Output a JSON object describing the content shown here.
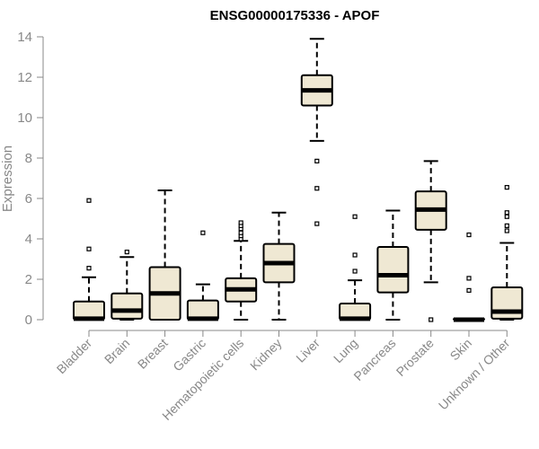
{
  "chart_data": {
    "type": "boxplot",
    "title": "ENSG00000175336 - APOF",
    "xlabel": "",
    "ylabel": "Expression",
    "ylim": [
      0,
      14
    ],
    "yticks": [
      0,
      2,
      4,
      6,
      8,
      10,
      12,
      14
    ],
    "grid": false,
    "box_fill": "#efe8d3",
    "box_stroke": "#000000",
    "categories": [
      "Bladder",
      "Brain",
      "Breast",
      "Gastric",
      "Hematopoietic cells",
      "Kidney",
      "Liver",
      "Lung",
      "Pancreas",
      "Prostate",
      "Skin",
      "Unknown / Other"
    ],
    "boxes": [
      {
        "min": 0,
        "q1": 0,
        "median": 0.05,
        "q3": 0.9,
        "max": 2.1,
        "outliers": [
          2.55,
          3.5,
          5.9
        ]
      },
      {
        "min": 0,
        "q1": 0.05,
        "median": 0.45,
        "q3": 1.3,
        "max": 3.1,
        "outliers": [
          3.35
        ]
      },
      {
        "min": 0,
        "q1": 0,
        "median": 1.3,
        "q3": 2.6,
        "max": 6.4,
        "outliers": []
      },
      {
        "min": 0,
        "q1": 0,
        "median": 0.05,
        "q3": 0.95,
        "max": 1.75,
        "outliers": [
          4.3
        ]
      },
      {
        "min": 0,
        "q1": 0.9,
        "median": 1.5,
        "q3": 2.05,
        "max": 3.9,
        "outliers": [
          4.0,
          4.15,
          4.3,
          4.5,
          4.65,
          4.8
        ]
      },
      {
        "min": 0,
        "q1": 1.85,
        "median": 2.8,
        "q3": 3.75,
        "max": 5.3,
        "outliers": []
      },
      {
        "min": 8.85,
        "q1": 10.6,
        "median": 11.35,
        "q3": 12.1,
        "max": 13.9,
        "outliers": [
          7.85,
          6.5,
          4.75
        ]
      },
      {
        "min": 0,
        "q1": 0,
        "median": 0.05,
        "q3": 0.8,
        "max": 1.95,
        "outliers": [
          2.4,
          3.2,
          5.1
        ]
      },
      {
        "min": 0,
        "q1": 1.35,
        "median": 2.2,
        "q3": 3.6,
        "max": 5.4,
        "outliers": []
      },
      {
        "min": 1.85,
        "q1": 4.45,
        "median": 5.45,
        "q3": 6.35,
        "max": 7.85,
        "outliers": [
          0
        ]
      },
      {
        "min": 0,
        "q1": 0,
        "median": 0,
        "q3": 0.05,
        "max": 0.05,
        "outliers": [
          1.45,
          2.05,
          4.2
        ]
      },
      {
        "min": 0,
        "q1": 0.05,
        "median": 0.4,
        "q3": 1.6,
        "max": 3.8,
        "outliers": [
          4.4,
          4.65,
          5.1,
          5.3,
          6.55
        ]
      }
    ]
  }
}
